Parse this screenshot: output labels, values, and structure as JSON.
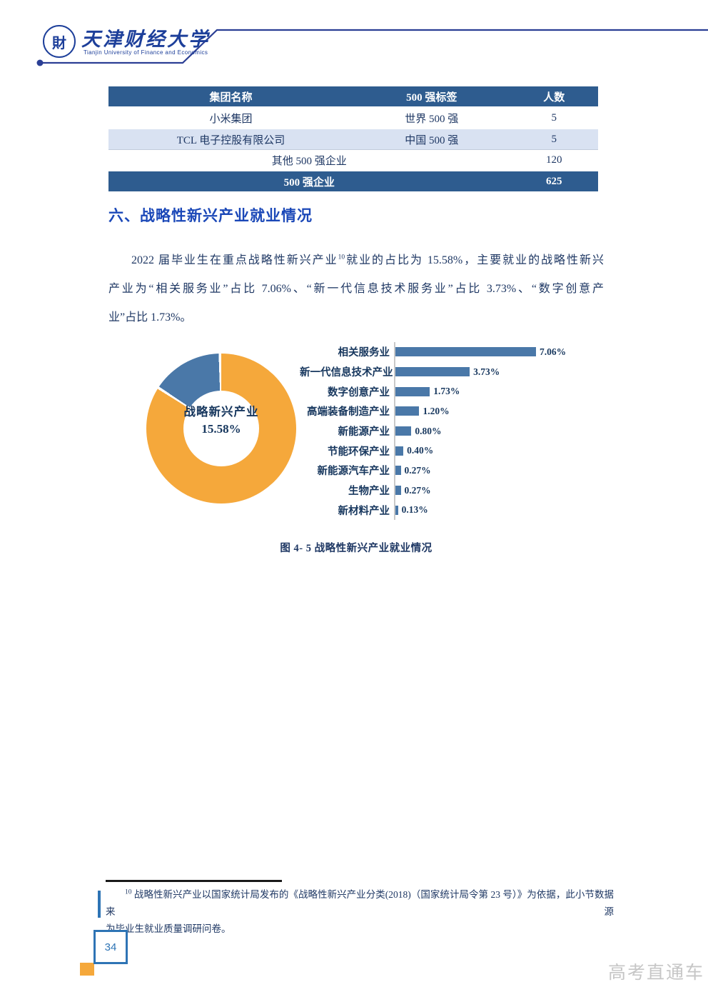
{
  "colors": {
    "table_header_bg": "#2E5C8F",
    "table_alt_row_bg": "#D9E2F2",
    "body_text": "#1F3864",
    "heading_blue": "#1B48B8",
    "chart_label": "#17375E",
    "chart_blue": "#4A78A8",
    "donut_orange": "#F5A83B",
    "page_accent_blue": "#2E74B5",
    "orange_accent": "#F5A83B",
    "header_line_blue": "#2B3F95",
    "watermark_gray": "#C6C6C6"
  },
  "header": {
    "logo_glyph": "財",
    "university_cn": "天津财经大学",
    "university_en": "Tianjin University of Finance and Economics"
  },
  "table": {
    "header": [
      "集团名称",
      "500 强标签",
      "人数"
    ],
    "rows": [
      {
        "c1": "小米集团",
        "c2": "世界 500 强",
        "c3": "5"
      },
      {
        "c1": "TCL 电子控股有限公司",
        "c2": "中国 500 强",
        "c3": "5"
      },
      {
        "merged": "其他 500 强企业",
        "c3": "120"
      },
      {
        "merged": "500 强企业",
        "c3": "625"
      }
    ]
  },
  "section": {
    "heading": "六、战略性新兴产业就业情况"
  },
  "paragraph": {
    "line1_pre": "2022 届毕业生在重点战略性新兴产业",
    "footnote_ref": "10",
    "line1_post": "就业的占比为 15.58%，主要就业的战略性新兴",
    "line2": "产业为“相关服务业”占比 7.06%、“新一代信息技术服务业”占比 3.73%、“数字创意产",
    "line3": "业”占比 1.73%。"
  },
  "chart_data": [
    {
      "type": "pie",
      "subtype": "donut",
      "segments": [
        {
          "label": "战略新兴产业",
          "value": 15.58,
          "color": "#4A78A8"
        },
        {
          "label": "",
          "value": 84.42,
          "color": "#F5A83B"
        }
      ],
      "center_label": [
        "战略新兴产业",
        "15.58%"
      ],
      "legend": "none",
      "layout": "blue segment starts at 12 o'clock sweeping counterclockwise"
    },
    {
      "type": "bar",
      "orientation": "horizontal",
      "categories": [
        "相关服务业",
        "新一代信息技术产业",
        "数字创意产业",
        "高端装备制造产业",
        "新能源产业",
        "节能环保产业",
        "新能源汽车产业",
        "生物产业",
        "新材料产业"
      ],
      "values": [
        7.06,
        3.73,
        1.73,
        1.2,
        0.8,
        0.4,
        0.27,
        0.27,
        0.13
      ],
      "value_labels": [
        "7.06%",
        "3.73%",
        "1.73%",
        "1.20%",
        "0.80%",
        "0.40%",
        "0.27%",
        "0.27%",
        "0.13%"
      ],
      "xlim": [
        0,
        7.5
      ],
      "grid": false,
      "bar_color": "#4A78A8",
      "value_label_position": "end"
    }
  ],
  "caption": "图 4- 5 战略性新兴产业就业情况",
  "footnote": {
    "ref": "10",
    "line1": "战略性新兴产业以国家统计局发布的《战略性新兴产业分类(2018)（国家统计局令第 23 号）》为依据，此小节数据来源",
    "line2": "为毕业生就业质量调研问卷。"
  },
  "page": {
    "number": "34"
  },
  "watermark": "高考直通车"
}
